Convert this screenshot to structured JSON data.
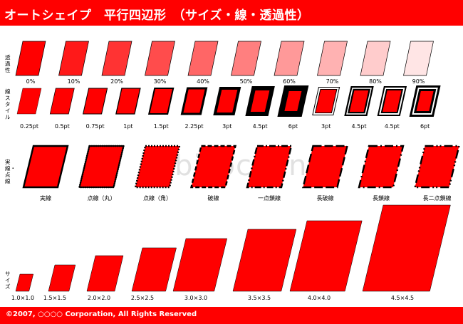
{
  "header": {
    "title": "オートシェイプ　平行四辺形　（サイズ・線・透過性）",
    "bg_color": "#ff0000"
  },
  "footer": {
    "copyright": "©2007, ○○○○ Corporation, All Rights Reserved"
  },
  "watermark": "bizocean",
  "sections": {
    "transparency": {
      "label": "透過性"
    },
    "line_style": {
      "label": "線スタイル"
    },
    "dash": {
      "label": "実線・点線"
    },
    "size": {
      "label": "サイズ"
    }
  },
  "shape_color": "#ff0000",
  "rows": {
    "transparency": [
      "0%",
      "10%",
      "20%",
      "30%",
      "40%",
      "50%",
      "60%",
      "70%",
      "80%",
      "90%"
    ],
    "line_style": [
      "0.25pt",
      "0.5pt",
      "0.75pt",
      "1pt",
      "1.5pt",
      "2.25pt",
      "3pt",
      "4.5pt",
      "6pt",
      "3pt",
      "4.5pt",
      "4.5pt",
      "6pt"
    ],
    "dash": [
      "実線",
      "点線（丸）",
      "点線（角）",
      "破線",
      "一点鎖線",
      "長破線",
      "長鎖線",
      "長二点鎖線"
    ],
    "size": [
      "1.0×1.0",
      "1.5×1.5",
      "2.0×2.0",
      "2.5×2.5",
      "3.0×3.0",
      "3.5×3.5",
      "4.0×4.0",
      "4.5×4.5"
    ]
  }
}
